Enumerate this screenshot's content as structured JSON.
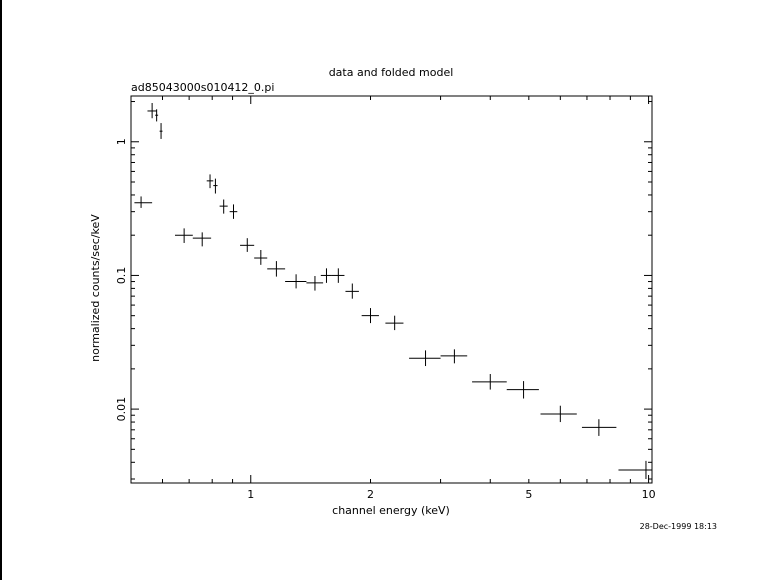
{
  "chart_data": {
    "type": "scatter",
    "title": "data and folded model",
    "subtitle": "ad85043000s010412_0.pi",
    "xlabel": "channel energy (keV)",
    "ylabel": "normalized counts/sec/keV",
    "timestamp": "28-Dec-1999 18:13",
    "x_scale": "log",
    "y_scale": "log",
    "xlim": [
      0.5,
      10.2
    ],
    "ylim": [
      0.0028,
      2.2
    ],
    "grid": false,
    "x_ticks": [
      {
        "value": 1,
        "label": "1"
      },
      {
        "value": 2,
        "label": "2"
      },
      {
        "value": 5,
        "label": "5"
      },
      {
        "value": 10,
        "label": "10"
      }
    ],
    "y_ticks": [
      {
        "value": 0.01,
        "label": "0.01"
      },
      {
        "value": 0.1,
        "label": "0.1"
      },
      {
        "value": 1,
        "label": "1"
      }
    ],
    "points": [
      {
        "x": 0.565,
        "xlo": 0.55,
        "xhi": 0.58,
        "y": 1.7,
        "ylo": 1.5,
        "yhi": 1.95
      },
      {
        "x": 0.58,
        "xlo": 0.575,
        "xhi": 0.585,
        "y": 1.58,
        "ylo": 1.42,
        "yhi": 1.75
      },
      {
        "x": 0.595,
        "xlo": 0.59,
        "xhi": 0.6,
        "y": 1.2,
        "ylo": 1.05,
        "yhi": 1.38
      },
      {
        "x": 0.53,
        "xlo": 0.51,
        "xhi": 0.565,
        "y": 0.35,
        "ylo": 0.32,
        "yhi": 0.39
      },
      {
        "x": 0.79,
        "xlo": 0.775,
        "xhi": 0.805,
        "y": 0.51,
        "ylo": 0.45,
        "yhi": 0.57
      },
      {
        "x": 0.815,
        "xlo": 0.805,
        "xhi": 0.825,
        "y": 0.47,
        "ylo": 0.41,
        "yhi": 0.53
      },
      {
        "x": 0.855,
        "xlo": 0.835,
        "xhi": 0.875,
        "y": 0.33,
        "ylo": 0.29,
        "yhi": 0.37
      },
      {
        "x": 0.905,
        "xlo": 0.885,
        "xhi": 0.925,
        "y": 0.3,
        "ylo": 0.265,
        "yhi": 0.34
      },
      {
        "x": 0.68,
        "xlo": 0.645,
        "xhi": 0.715,
        "y": 0.2,
        "ylo": 0.175,
        "yhi": 0.225
      },
      {
        "x": 0.755,
        "xlo": 0.715,
        "xhi": 0.795,
        "y": 0.19,
        "ylo": 0.165,
        "yhi": 0.21
      },
      {
        "x": 0.98,
        "xlo": 0.94,
        "xhi": 1.02,
        "y": 0.168,
        "ylo": 0.15,
        "yhi": 0.19
      },
      {
        "x": 1.06,
        "xlo": 1.02,
        "xhi": 1.1,
        "y": 0.135,
        "ylo": 0.12,
        "yhi": 0.155
      },
      {
        "x": 1.16,
        "xlo": 1.1,
        "xhi": 1.22,
        "y": 0.112,
        "ylo": 0.098,
        "yhi": 0.128
      },
      {
        "x": 1.3,
        "xlo": 1.22,
        "xhi": 1.38,
        "y": 0.09,
        "ylo": 0.08,
        "yhi": 0.102
      },
      {
        "x": 1.45,
        "xlo": 1.38,
        "xhi": 1.52,
        "y": 0.088,
        "ylo": 0.077,
        "yhi": 0.099
      },
      {
        "x": 1.55,
        "xlo": 1.5,
        "xhi": 1.6,
        "y": 0.1,
        "ylo": 0.088,
        "yhi": 0.113
      },
      {
        "x": 1.66,
        "xlo": 1.6,
        "xhi": 1.72,
        "y": 0.1,
        "ylo": 0.088,
        "yhi": 0.113
      },
      {
        "x": 1.8,
        "xlo": 1.73,
        "xhi": 1.87,
        "y": 0.076,
        "ylo": 0.067,
        "yhi": 0.087
      },
      {
        "x": 2.0,
        "xlo": 1.9,
        "xhi": 2.1,
        "y": 0.05,
        "ylo": 0.044,
        "yhi": 0.057
      },
      {
        "x": 2.3,
        "xlo": 2.18,
        "xhi": 2.42,
        "y": 0.044,
        "ylo": 0.039,
        "yhi": 0.05
      },
      {
        "x": 2.75,
        "xlo": 2.5,
        "xhi": 3.0,
        "y": 0.024,
        "ylo": 0.021,
        "yhi": 0.0275
      },
      {
        "x": 3.25,
        "xlo": 3.0,
        "xhi": 3.5,
        "y": 0.025,
        "ylo": 0.022,
        "yhi": 0.028
      },
      {
        "x": 4.0,
        "xlo": 3.6,
        "xhi": 4.4,
        "y": 0.016,
        "ylo": 0.014,
        "yhi": 0.0183
      },
      {
        "x": 4.85,
        "xlo": 4.4,
        "xhi": 5.3,
        "y": 0.014,
        "ylo": 0.012,
        "yhi": 0.0162
      },
      {
        "x": 6.0,
        "xlo": 5.35,
        "xhi": 6.6,
        "y": 0.0092,
        "ylo": 0.008,
        "yhi": 0.0106
      },
      {
        "x": 7.5,
        "xlo": 6.8,
        "xhi": 8.3,
        "y": 0.0073,
        "ylo": 0.0063,
        "yhi": 0.0084
      },
      {
        "x": 9.85,
        "xlo": 8.4,
        "xhi": 10.2,
        "y": 0.0035,
        "ylo": 0.003,
        "yhi": 0.0041
      }
    ]
  }
}
